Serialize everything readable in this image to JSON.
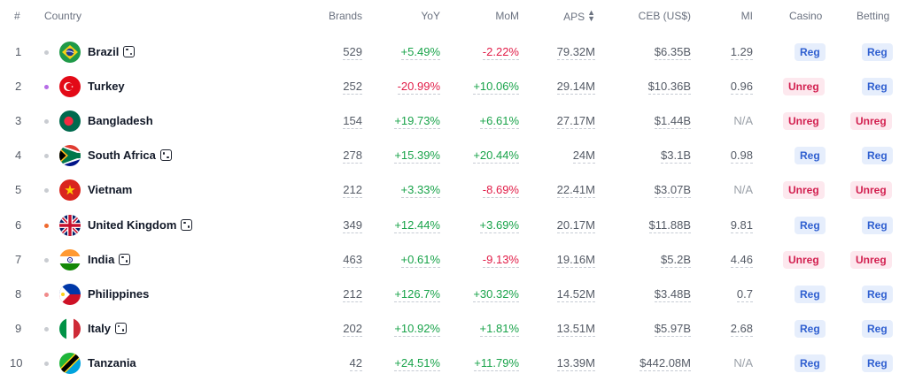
{
  "headers": {
    "rank": "#",
    "country": "Country",
    "brands": "Brands",
    "yoy": "YoY",
    "mom": "MoM",
    "aps": "APS",
    "ceb": "CEB (US$)",
    "mi": "MI",
    "casino": "Casino",
    "betting": "Betting"
  },
  "rows": [
    {
      "rank": "1",
      "country": "Brazil",
      "dice": true,
      "bullet": "#c9ccd1",
      "brands": "529",
      "yoy": "+5.49%",
      "yoy_dir": "pos",
      "mom": "-2.22%",
      "mom_dir": "neg",
      "aps": "79.32M",
      "ceb": "$6.35B",
      "mi": "1.29",
      "casino": "Reg",
      "betting": "Reg",
      "flag": "brazil"
    },
    {
      "rank": "2",
      "country": "Turkey",
      "dice": false,
      "bullet": "#b66ce6",
      "brands": "252",
      "yoy": "-20.99%",
      "yoy_dir": "neg",
      "mom": "+10.06%",
      "mom_dir": "pos",
      "aps": "29.14M",
      "ceb": "$10.36B",
      "mi": "0.96",
      "casino": "Unreg",
      "betting": "Reg",
      "flag": "turkey"
    },
    {
      "rank": "3",
      "country": "Bangladesh",
      "dice": false,
      "bullet": "#c9ccd1",
      "brands": "154",
      "yoy": "+19.73%",
      "yoy_dir": "pos",
      "mom": "+6.61%",
      "mom_dir": "pos",
      "aps": "27.17M",
      "ceb": "$1.44B",
      "mi": "N/A",
      "casino": "Unreg",
      "betting": "Unreg",
      "flag": "bangladesh"
    },
    {
      "rank": "4",
      "country": "South Africa",
      "dice": true,
      "bullet": "#c9ccd1",
      "brands": "278",
      "yoy": "+15.39%",
      "yoy_dir": "pos",
      "mom": "+20.44%",
      "mom_dir": "pos",
      "aps": "24M",
      "ceb": "$3.1B",
      "mi": "0.98",
      "casino": "Reg",
      "betting": "Reg",
      "flag": "southafrica"
    },
    {
      "rank": "5",
      "country": "Vietnam",
      "dice": false,
      "bullet": "#c9ccd1",
      "brands": "212",
      "yoy": "+3.33%",
      "yoy_dir": "pos",
      "mom": "-8.69%",
      "mom_dir": "neg",
      "aps": "22.41M",
      "ceb": "$3.07B",
      "mi": "N/A",
      "casino": "Unreg",
      "betting": "Unreg",
      "flag": "vietnam"
    },
    {
      "rank": "6",
      "country": "United Kingdom",
      "dice": true,
      "bullet": "#ef6a2f",
      "brands": "349",
      "yoy": "+12.44%",
      "yoy_dir": "pos",
      "mom": "+3.69%",
      "mom_dir": "pos",
      "aps": "20.17M",
      "ceb": "$11.88B",
      "mi": "9.81",
      "casino": "Reg",
      "betting": "Reg",
      "flag": "uk"
    },
    {
      "rank": "7",
      "country": "India",
      "dice": true,
      "bullet": "#c9ccd1",
      "brands": "463",
      "yoy": "+0.61%",
      "yoy_dir": "pos",
      "mom": "-9.13%",
      "mom_dir": "neg",
      "aps": "19.16M",
      "ceb": "$5.2B",
      "mi": "4.46",
      "casino": "Unreg",
      "betting": "Unreg",
      "flag": "india"
    },
    {
      "rank": "8",
      "country": "Philippines",
      "dice": false,
      "bullet": "#f08a8a",
      "brands": "212",
      "yoy": "+126.7%",
      "yoy_dir": "pos",
      "mom": "+30.32%",
      "mom_dir": "pos",
      "aps": "14.52M",
      "ceb": "$3.48B",
      "mi": "0.7",
      "casino": "Reg",
      "betting": "Reg",
      "flag": "philippines"
    },
    {
      "rank": "9",
      "country": "Italy",
      "dice": true,
      "bullet": "#c9ccd1",
      "brands": "202",
      "yoy": "+10.92%",
      "yoy_dir": "pos",
      "mom": "+1.81%",
      "mom_dir": "pos",
      "aps": "13.51M",
      "ceb": "$5.97B",
      "mi": "2.68",
      "casino": "Reg",
      "betting": "Reg",
      "flag": "italy"
    },
    {
      "rank": "10",
      "country": "Tanzania",
      "dice": false,
      "bullet": "#c9ccd1",
      "brands": "42",
      "yoy": "+24.51%",
      "yoy_dir": "pos",
      "mom": "+11.79%",
      "mom_dir": "pos",
      "aps": "13.39M",
      "ceb": "$442.08M",
      "mi": "N/A",
      "casino": "Reg",
      "betting": "Reg",
      "flag": "tanzania"
    }
  ]
}
